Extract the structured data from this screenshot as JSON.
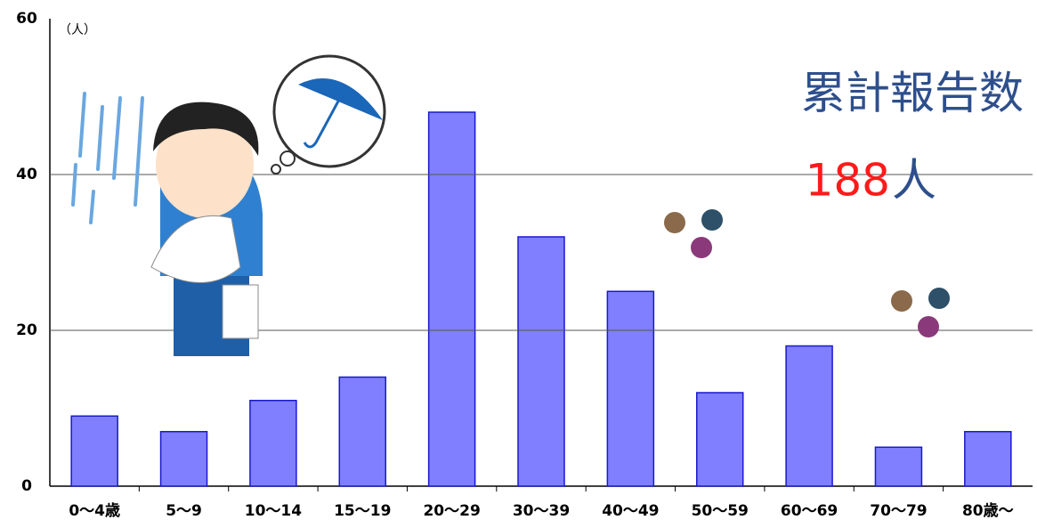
{
  "chart_data": {
    "type": "bar",
    "y_unit": "（人）",
    "annotation": "累計報告数",
    "total": 188,
    "total_unit": "人",
    "categories": [
      "0～4歳",
      "5～9",
      "10～14",
      "15～19",
      "20～29",
      "30～39",
      "40～49",
      "50～59",
      "60～69",
      "70～79",
      "80歳～"
    ],
    "values": [
      9,
      7,
      11,
      14,
      48,
      32,
      25,
      12,
      18,
      5,
      7
    ],
    "color": "#7f7fff",
    "ylim": [
      0,
      60
    ],
    "yticks": [
      0,
      20,
      40,
      60
    ],
    "grid": true
  }
}
